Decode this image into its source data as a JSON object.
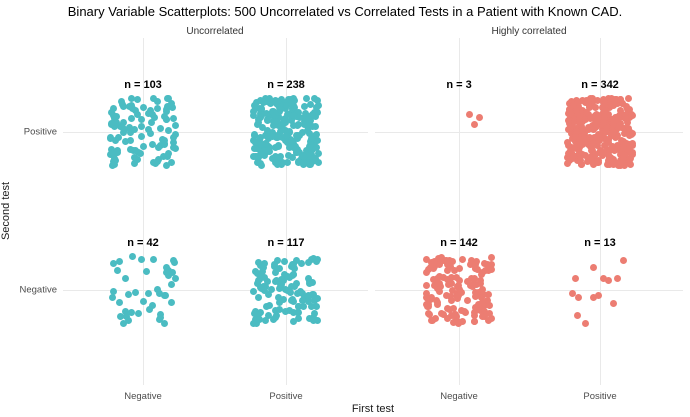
{
  "title": "Binary Variable Scatterplots: 500 Uncorrelated vs Correlated Tests in a Patient with Known CAD.",
  "axes": {
    "x_title": "First test",
    "y_title": "Second test",
    "x_ticks": [
      "Negative",
      "Positive",
      "Negative",
      "Positive"
    ],
    "y_ticks": [
      "Positive",
      "Negative"
    ]
  },
  "colors": {
    "uncorrelated_points": "#4bbcc2",
    "correlated_points": "#ec7d72",
    "gridline": "#e9e9e9",
    "tick_label": "#4d4d4d"
  },
  "chart_data": {
    "type": "scatter",
    "title": "Binary Variable Scatterplots: 500 Uncorrelated vs Correlated Tests in a Patient with Known CAD.",
    "xlabel": "First test",
    "ylabel": "Second test",
    "x_categories": [
      "Negative",
      "Positive"
    ],
    "y_categories": [
      "Positive",
      "Negative"
    ],
    "grid": true,
    "legend": false,
    "total_per_facet": 500,
    "facets": [
      {
        "label": "Uncorrelated",
        "color": "#4bbcc2",
        "clusters": [
          {
            "x": "Negative",
            "y": "Positive",
            "n": 103,
            "label": "n = 103"
          },
          {
            "x": "Positive",
            "y": "Positive",
            "n": 238,
            "label": "n = 238"
          },
          {
            "x": "Negative",
            "y": "Negative",
            "n": 42,
            "label": "n = 42"
          },
          {
            "x": "Positive",
            "y": "Negative",
            "n": 117,
            "label": "n = 117"
          }
        ]
      },
      {
        "label": "Highly correlated",
        "color": "#ec7d72",
        "clusters": [
          {
            "x": "Negative",
            "y": "Positive",
            "n": 3,
            "label": "n = 3",
            "points": [
              [
                10,
                -18
              ],
              [
                20,
                -15
              ],
              [
                15,
                -8
              ]
            ]
          },
          {
            "x": "Positive",
            "y": "Positive",
            "n": 342,
            "label": "n = 342"
          },
          {
            "x": "Negative",
            "y": "Negative",
            "n": 142,
            "label": "n = 142"
          },
          {
            "x": "Positive",
            "y": "Negative",
            "n": 13,
            "label": "n = 13",
            "points": [
              [
                -25,
                -12
              ],
              [
                -7,
                -23
              ],
              [
                3,
                -12
              ],
              [
                8,
                -10
              ],
              [
                17,
                -12
              ],
              [
                23,
                -30
              ],
              [
                -28,
                3
              ],
              [
                -22,
                7
              ],
              [
                -7,
                7
              ],
              [
                -2,
                5
              ],
              [
                13,
                13
              ],
              [
                -23,
                25
              ],
              [
                -15,
                33
              ]
            ]
          }
        ]
      }
    ]
  }
}
